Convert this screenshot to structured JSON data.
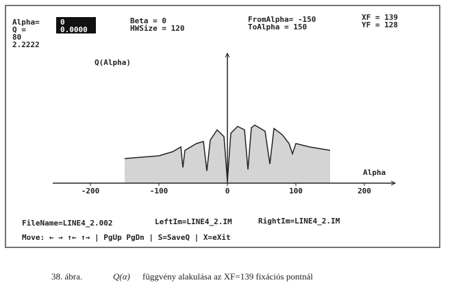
{
  "header": {
    "alpha_label": "Alpha=",
    "alpha_value": "0",
    "q_label": "Q     =",
    "q_value": "0.0000",
    "line3": "80",
    "line4": "2.2222",
    "beta": "Beta   = 0",
    "hwsize": "HWSize = 120",
    "from_alpha": "FromAlpha= -150",
    "to_alpha": "ToAlpha  = 150",
    "xf": "XF = 139",
    "yf": "YF = 128"
  },
  "chart_data": {
    "type": "area",
    "y_label": "Q(Alpha)",
    "x_label": "Alpha",
    "x": [
      -150,
      -100,
      -80,
      -68,
      -65,
      -62,
      -45,
      -35,
      -30,
      -25,
      -15,
      -5,
      0,
      5,
      15,
      25,
      30,
      35,
      40,
      55,
      62,
      68,
      80,
      90,
      95,
      100,
      120,
      150
    ],
    "series": [
      {
        "color": "#222",
        "values": [
          36,
          40,
          46,
          53,
          23,
          48,
          58,
          61,
          18,
          63,
          78,
          68,
          3,
          73,
          83,
          78,
          20,
          81,
          85,
          76,
          28,
          80,
          71,
          58,
          43,
          58,
          53,
          48
        ]
      }
    ],
    "xlim": [
      -255,
      245
    ],
    "ylim": [
      0,
      190
    ],
    "xticks": [
      -200,
      -100,
      0,
      100,
      200
    ]
  },
  "footer": {
    "filename": "FileName=LINE4_2.002",
    "leftim": "LeftIm=LINE4_2.IM",
    "rightim": "RightIm=LINE4_2.IM",
    "move": "Move: ← → ↑← ↑→ | PgUp PgDn | S=SaveQ | X=eXit"
  },
  "caption": {
    "number": "38. ábra.",
    "symbol": "Q(α)",
    "text": "függvény alakulása az XF=139 fixációs pontnál"
  }
}
